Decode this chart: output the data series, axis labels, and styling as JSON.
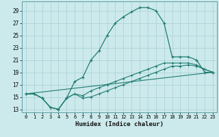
{
  "xlabel": "Humidex (Indice chaleur)",
  "background_color": "#cce9ec",
  "grid_color": "#add4d8",
  "line_color": "#1e7b70",
  "xlim": [
    -0.5,
    23.5
  ],
  "ylim": [
    12.5,
    30.5
  ],
  "xticks": [
    0,
    1,
    2,
    3,
    4,
    5,
    6,
    7,
    8,
    9,
    10,
    11,
    12,
    13,
    14,
    15,
    16,
    17,
    18,
    19,
    20,
    21,
    22,
    23
  ],
  "yticks": [
    13,
    15,
    17,
    19,
    21,
    23,
    25,
    27,
    29
  ],
  "line1_x": [
    0,
    1,
    2,
    3,
    4,
    5,
    6,
    7,
    8,
    9,
    10,
    11,
    12,
    13,
    14,
    15,
    16,
    17,
    18,
    19,
    20,
    21,
    22,
    23
  ],
  "line1_y": [
    15.5,
    15.5,
    14.8,
    13.3,
    13.0,
    14.8,
    17.5,
    18.2,
    21.0,
    22.5,
    25.0,
    27.0,
    28.0,
    28.8,
    29.5,
    29.5,
    29.0,
    27.0,
    21.5,
    21.5,
    21.5,
    21.0,
    19.0,
    19.0
  ],
  "line2_x": [
    0,
    1,
    2,
    3,
    4,
    5,
    6,
    7,
    8,
    9,
    10,
    11,
    12,
    13,
    14,
    15,
    16,
    17,
    18,
    19,
    20,
    21,
    22,
    23
  ],
  "line2_y": [
    15.5,
    15.5,
    14.8,
    13.3,
    13.0,
    14.8,
    15.5,
    14.8,
    15.0,
    15.5,
    16.0,
    16.5,
    17.0,
    17.5,
    18.0,
    18.5,
    19.0,
    19.5,
    20.0,
    20.0,
    20.2,
    20.0,
    19.5,
    19.0
  ],
  "line3_x": [
    0,
    1,
    2,
    3,
    4,
    5,
    6,
    7,
    8,
    9,
    10,
    11,
    12,
    13,
    14,
    15,
    16,
    17,
    18,
    19,
    20,
    21,
    22,
    23
  ],
  "line3_y": [
    15.5,
    15.5,
    14.8,
    13.3,
    13.0,
    14.8,
    15.5,
    15.2,
    16.0,
    16.5,
    17.0,
    17.5,
    18.0,
    18.5,
    19.0,
    19.5,
    20.0,
    20.5,
    20.5,
    20.5,
    20.5,
    20.2,
    19.5,
    19.0
  ],
  "line4_x": [
    0,
    23
  ],
  "line4_y": [
    15.5,
    19.0
  ]
}
